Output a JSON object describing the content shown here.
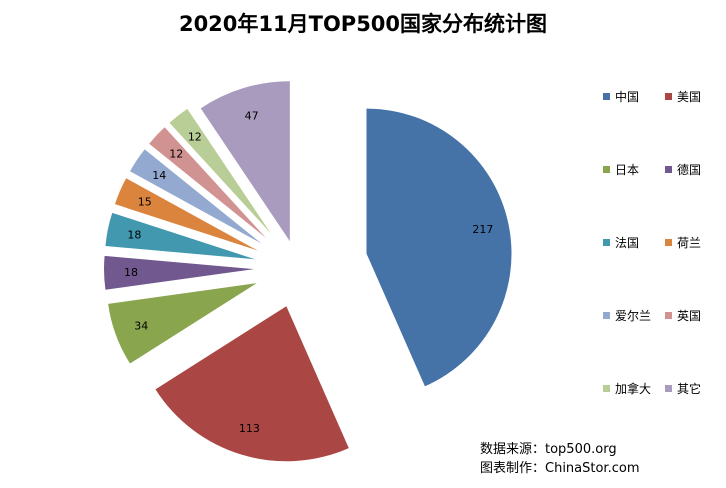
{
  "chart_data": {
    "type": "pie",
    "title": "2020年11月TOP500国家分布统计图",
    "categories": [
      "中国",
      "美国",
      "日本",
      "德国",
      "法国",
      "荷兰",
      "爱尔兰",
      "英国",
      "加拿大",
      "其它"
    ],
    "values": [
      217,
      113,
      34,
      18,
      18,
      15,
      14,
      12,
      12,
      47
    ],
    "colors": [
      "#4572A7",
      "#AA4643",
      "#89A54E",
      "#71588F",
      "#4198AF",
      "#DB843D",
      "#93A9CF",
      "#D19392",
      "#B9CD96",
      "#A99BBD"
    ],
    "legend_position": "right",
    "exploded": true
  },
  "source": {
    "line1": "数据来源：top500.org",
    "line2": "图表制作：ChinaStor.com"
  }
}
